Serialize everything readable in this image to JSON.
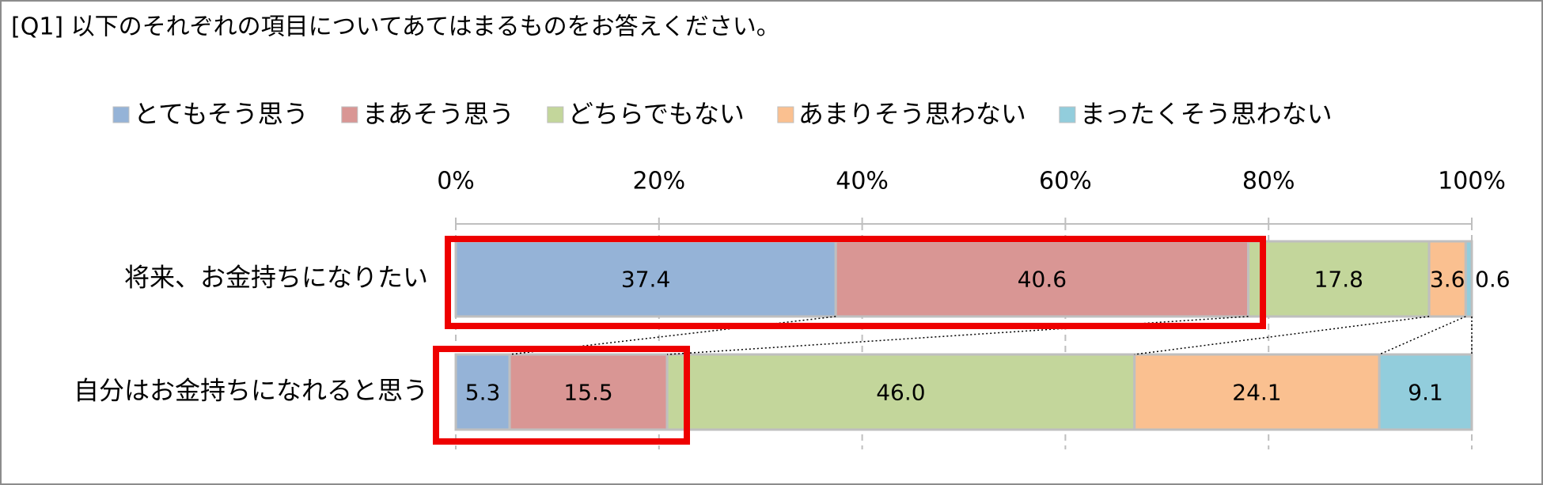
{
  "chart_data": {
    "type": "stacked-bar-horizontal",
    "title": "[Q1] 以下のそれぞれの項目についてあてはまるものをお答えください。",
    "categories": [
      "将来、お金持ちになりたい",
      "自分はお金持ちになれると思う"
    ],
    "series": [
      {
        "name": "とてもそう思う",
        "color": "#95b3d7",
        "values": [
          37.4,
          5.3
        ]
      },
      {
        "name": "まあそう思う",
        "color": "#d99694",
        "values": [
          40.6,
          15.5
        ]
      },
      {
        "name": "どちらでもない",
        "color": "#c3d69b",
        "values": [
          17.8,
          46.0
        ],
        "value_labels": [
          "17.8",
          "46.0"
        ]
      },
      {
        "name": "あまりそう思わない",
        "color": "#fac090",
        "values": [
          3.6,
          24.1
        ]
      },
      {
        "name": "まったくそう思わない",
        "color": "#92cddc",
        "values": [
          0.6,
          9.1
        ]
      }
    ],
    "xlim": [
      0,
      100
    ],
    "xticks": [
      {
        "value": 0,
        "label": "0%"
      },
      {
        "value": 20,
        "label": "20%"
      },
      {
        "value": 40,
        "label": "40%"
      },
      {
        "value": 60,
        "label": "60%"
      },
      {
        "value": 80,
        "label": "80%"
      },
      {
        "value": 100,
        "label": "100%"
      }
    ],
    "grid": true,
    "legend": "top"
  }
}
